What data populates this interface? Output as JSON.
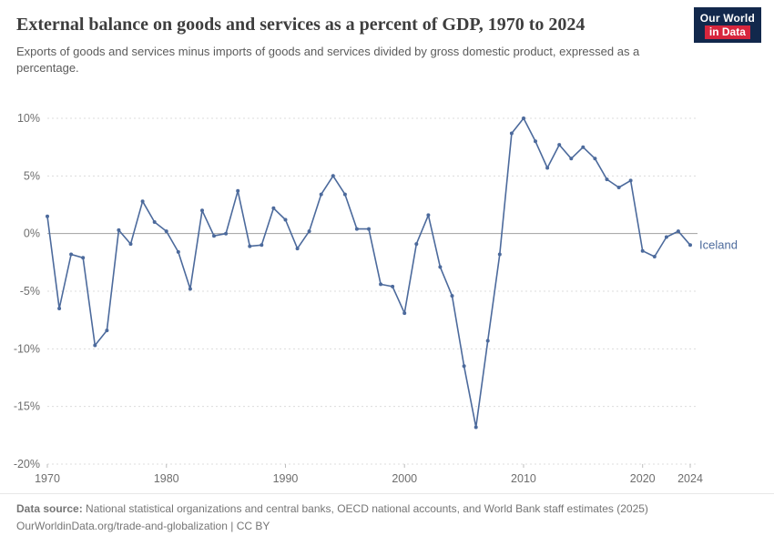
{
  "logo": {
    "line1": "Our World",
    "line2": "in Data"
  },
  "header": {
    "title": "External balance on goods and services as a percent of GDP, 1970 to 2024",
    "subtitle": "Exports of goods and services minus imports of goods and services divided by gross domestic product, expressed as a percentage."
  },
  "chart_data": {
    "type": "line",
    "title": "External balance on goods and services as a percent of GDP, 1970 to 2024",
    "xlabel": "",
    "ylabel": "",
    "xlim": [
      1970,
      2024
    ],
    "ylim": [
      -20,
      10
    ],
    "yticks": [
      10,
      5,
      0,
      -5,
      -10,
      -15,
      -20
    ],
    "ytick_labels": [
      "10%",
      "5%",
      "0%",
      "-5%",
      "-10%",
      "-15%",
      "-20%"
    ],
    "xticks": [
      1970,
      1980,
      1990,
      2000,
      2010,
      2020,
      2024
    ],
    "grid": "horizontal-dashed",
    "legend_position": "end-of-line-label",
    "series": [
      {
        "name": "Iceland",
        "color": "#4c6a9c",
        "x": [
          1970,
          1971,
          1972,
          1973,
          1974,
          1975,
          1976,
          1977,
          1978,
          1979,
          1980,
          1981,
          1982,
          1983,
          1984,
          1985,
          1986,
          1987,
          1988,
          1989,
          1990,
          1991,
          1992,
          1993,
          1994,
          1995,
          1996,
          1997,
          1998,
          1999,
          2000,
          2001,
          2002,
          2003,
          2004,
          2005,
          2006,
          2007,
          2008,
          2009,
          2010,
          2011,
          2012,
          2013,
          2014,
          2015,
          2016,
          2017,
          2018,
          2019,
          2020,
          2021,
          2022,
          2023,
          2024
        ],
        "values": [
          1.5,
          -6.5,
          -1.8,
          -2.1,
          -9.7,
          -8.4,
          0.3,
          -0.9,
          2.8,
          1.0,
          0.2,
          -1.6,
          -4.8,
          2.0,
          -0.2,
          0.0,
          3.7,
          -1.1,
          -1.0,
          2.2,
          1.2,
          -1.3,
          0.2,
          3.4,
          5.0,
          3.4,
          0.4,
          0.4,
          -4.4,
          -4.6,
          -6.9,
          -0.9,
          1.6,
          -2.9,
          -5.4,
          -11.5,
          -16.8,
          -9.3,
          -1.8,
          8.7,
          10.0,
          8.0,
          5.7,
          7.7,
          6.5,
          7.5,
          6.5,
          4.7,
          4.0,
          4.6,
          -1.5,
          -2.0,
          -0.3,
          0.2,
          -1.0
        ]
      }
    ]
  },
  "footer": {
    "source_label": "Data source:",
    "source_text": " National statistical organizations and central banks, OECD national accounts, and World Bank staff estimates (2025)",
    "link_line": "OurWorldinData.org/trade-and-globalization | CC BY"
  }
}
